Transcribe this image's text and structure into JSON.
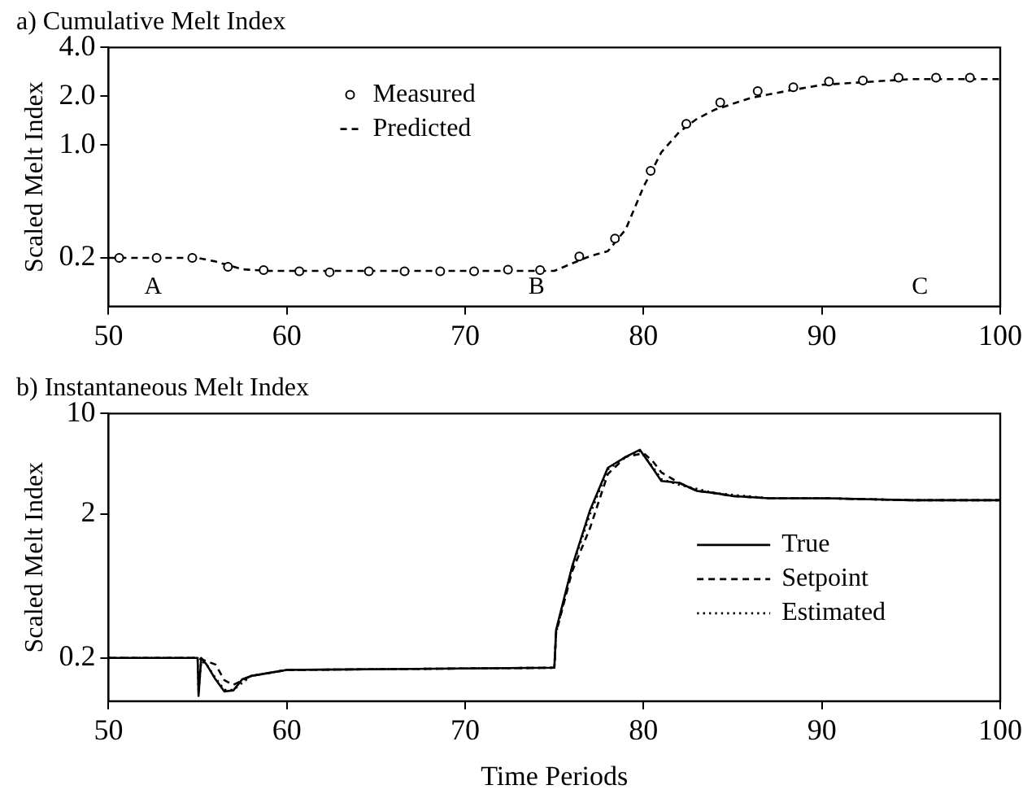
{
  "chart_data": [
    {
      "type": "line",
      "title": "a) Cumulative Melt Index",
      "ylabel": "Scaled Melt Index",
      "xlim": [
        50,
        100
      ],
      "xticks": [
        50,
        60,
        70,
        80,
        90,
        100
      ],
      "ylim": [
        0.1,
        4
      ],
      "yticks": [
        {
          "value": 0.2,
          "label": "0.2"
        },
        {
          "value": 1,
          "label": "1.0"
        },
        {
          "value": 2,
          "label": "2.0"
        },
        {
          "value": 4,
          "label": "4.0"
        }
      ],
      "log": "y",
      "legend": "top left",
      "annotations": [
        "A",
        "B",
        "C"
      ],
      "series": [
        {
          "name": "Measured",
          "type": "scatter",
          "marker": "circle",
          "color": "#000000",
          "x": [
            50.6,
            52.7,
            54.7,
            56.7,
            58.7,
            60.7,
            62.4,
            64.6,
            66.6,
            68.6,
            70.5,
            72.4,
            74.2,
            76.4,
            78.4,
            80.4,
            82.4,
            84.3,
            86.4,
            88.4,
            90.4,
            92.3,
            94.3,
            96.4,
            98.3
          ],
          "values": [
            0.2,
            0.2,
            0.2,
            0.176,
            0.168,
            0.165,
            0.163,
            0.165,
            0.165,
            0.165,
            0.165,
            0.169,
            0.168,
            0.204,
            0.263,
            0.69,
            1.35,
            1.83,
            2.15,
            2.27,
            2.46,
            2.5,
            2.6,
            2.6,
            2.6
          ]
        },
        {
          "name": "Predicted",
          "line_style": "dashed",
          "marker": "none",
          "color": "#000000",
          "x": [
            50,
            55,
            56,
            57.5,
            59,
            75,
            76,
            77,
            78,
            79,
            80,
            81,
            82,
            83,
            84,
            86,
            88,
            90,
            95,
            100
          ],
          "values": [
            0.2,
            0.2,
            0.19,
            0.17,
            0.166,
            0.166,
            0.185,
            0.205,
            0.22,
            0.3,
            0.55,
            0.9,
            1.2,
            1.45,
            1.65,
            1.95,
            2.15,
            2.35,
            2.55,
            2.55
          ]
        }
      ]
    },
    {
      "type": "line",
      "title": "b) Instantaneous Melt Index",
      "xlabel": "Time Periods",
      "ylabel": "Scaled Melt Index",
      "xlim": [
        50,
        100
      ],
      "xticks": [
        50,
        60,
        70,
        80,
        90,
        100
      ],
      "ylim": [
        0.1,
        10
      ],
      "yticks": [
        0.2,
        2,
        10
      ],
      "log": "y",
      "legend": "right",
      "series": [
        {
          "name": "True",
          "line_style": "solid",
          "marker": "none",
          "color": "#000000",
          "x": [
            50,
            55,
            55.05,
            55.2,
            55.5,
            56,
            56.5,
            57,
            57.5,
            58,
            60,
            62,
            75,
            75.1,
            76,
            77,
            78,
            79,
            79.8,
            80.5,
            81,
            82,
            83,
            84,
            85,
            87,
            90,
            95,
            100
          ],
          "values": [
            0.2,
            0.2,
            0.109,
            0.2,
            0.18,
            0.142,
            0.117,
            0.119,
            0.142,
            0.15,
            0.165,
            0.166,
            0.171,
            0.314,
            0.867,
            2.13,
            4.2,
            5,
            5.6,
            4.2,
            3.4,
            3.3,
            2.9,
            2.8,
            2.67,
            2.58,
            2.58,
            2.5,
            2.5
          ]
        },
        {
          "name": "Setpoint",
          "line_style": "dashed",
          "marker": "none",
          "color": "#000000",
          "x": [
            50,
            55,
            55.5,
            56,
            56.5,
            57,
            58,
            60,
            75,
            75.1,
            76,
            77,
            78,
            79,
            80,
            80.5,
            81,
            82,
            83,
            84,
            85,
            87,
            90,
            95,
            100
          ],
          "values": [
            0.2,
            0.2,
            0.19,
            0.18,
            0.14,
            0.13,
            0.15,
            0.165,
            0.171,
            0.3,
            0.8,
            1.6,
            3.8,
            5,
            5.3,
            4.7,
            3.9,
            3.3,
            2.9,
            2.8,
            2.67,
            2.58,
            2.58,
            2.5,
            2.5
          ]
        },
        {
          "name": "Estimated",
          "line_style": "dotted",
          "marker": "none",
          "color": "#000000",
          "x": [
            50,
            55,
            55.05,
            55.2,
            55.5,
            56,
            56.5,
            57,
            58,
            60,
            75,
            75.1,
            76,
            77,
            78,
            79,
            79.8,
            80.5,
            81,
            82,
            84,
            87,
            90,
            95,
            100
          ],
          "values": [
            0.2,
            0.2,
            0.115,
            0.19,
            0.18,
            0.145,
            0.12,
            0.12,
            0.15,
            0.165,
            0.171,
            0.3,
            0.85,
            2,
            4.1,
            5,
            5.5,
            4.3,
            3.5,
            3.2,
            2.8,
            2.58,
            2.58,
            2.5,
            2.5
          ]
        }
      ]
    }
  ]
}
